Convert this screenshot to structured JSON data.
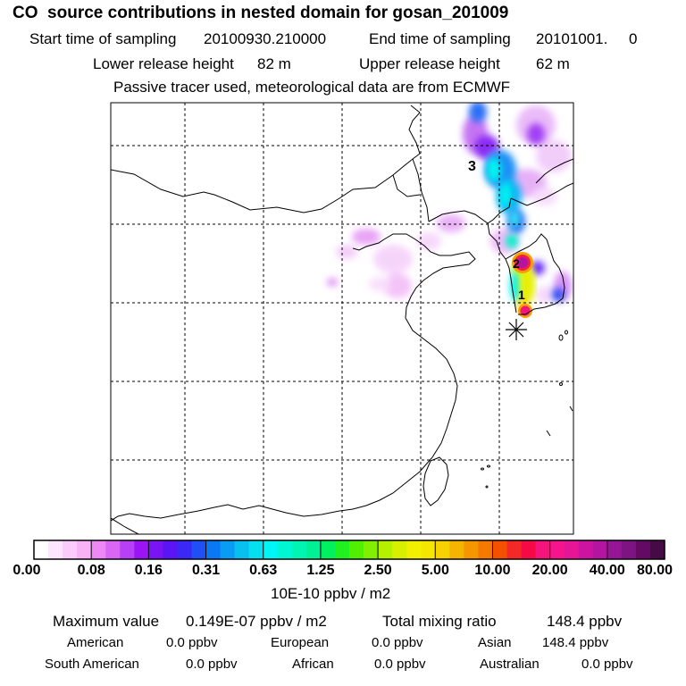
{
  "header": {
    "title": "CO  source contributions in nested domain for gosan_201009",
    "start_label": "Start time of sampling",
    "start_value": "20100930.210000",
    "end_label": "End time of sampling",
    "end_value": "20101001.     0",
    "lower_label": "Lower release height",
    "lower_value": "82 m",
    "upper_label": "Upper release height",
    "upper_value": "62 m",
    "note": "Passive tracer used, meteorological data are from ECMWF"
  },
  "map": {
    "markers": [
      {
        "label": "3"
      },
      {
        "label": "2"
      },
      {
        "label": "1"
      }
    ],
    "receptor_symbol": "asterisk",
    "plume_color_low": "#ff99ff",
    "plume_color_mid": "#00e5ff",
    "plume_color_high": "#ff1493"
  },
  "colorbar": {
    "labels": [
      "0.00",
      "0.08",
      "0.16",
      "0.31",
      "0.63",
      "1.25",
      "2.50",
      "5.00",
      "10.00",
      "20.00",
      "40.00",
      "80.00"
    ],
    "unit": "10E-10 ppbv / m2",
    "colors": [
      "#ffffff",
      "#fde6fd",
      "#fbccfb",
      "#f8b2f8",
      "#ee88f5",
      "#d966f5",
      "#b73ff5",
      "#9a14f5",
      "#7a14f5",
      "#5a14f5",
      "#3c28f5",
      "#1e50f5",
      "#0a78f5",
      "#0a9bf5",
      "#08bff0",
      "#06dff0",
      "#00f5f5",
      "#00f5d2",
      "#00f5b4",
      "#00f096",
      "#00f060",
      "#20f020",
      "#50f000",
      "#80f000",
      "#b4f000",
      "#d6f000",
      "#f0f000",
      "#f5e600",
      "#f5d200",
      "#f5b400",
      "#f59600",
      "#f57800",
      "#f55000",
      "#f52828",
      "#f50a46",
      "#f5147d",
      "#f5148c",
      "#e61496",
      "#cd14a0",
      "#b414a0",
      "#961496",
      "#7d1482",
      "#640a64",
      "#460a46"
    ]
  },
  "stats": {
    "max_label": "Maximum value",
    "max_value": "0.149E-07 ppbv / m2",
    "total_label": "Total mixing ratio",
    "total_value": "148.4 ppbv",
    "american_label": "American",
    "american_value": "0.0 ppbv",
    "european_label": "European",
    "european_value": "0.0 ppbv",
    "asian_label": "Asian",
    "asian_value": "148.4 ppbv",
    "south_american_label": "South American",
    "south_american_value": "0.0 ppbv",
    "african_label": "African",
    "african_value": "0.0 ppbv",
    "australian_label": "Australian",
    "australian_value": "0.0 ppbv"
  }
}
